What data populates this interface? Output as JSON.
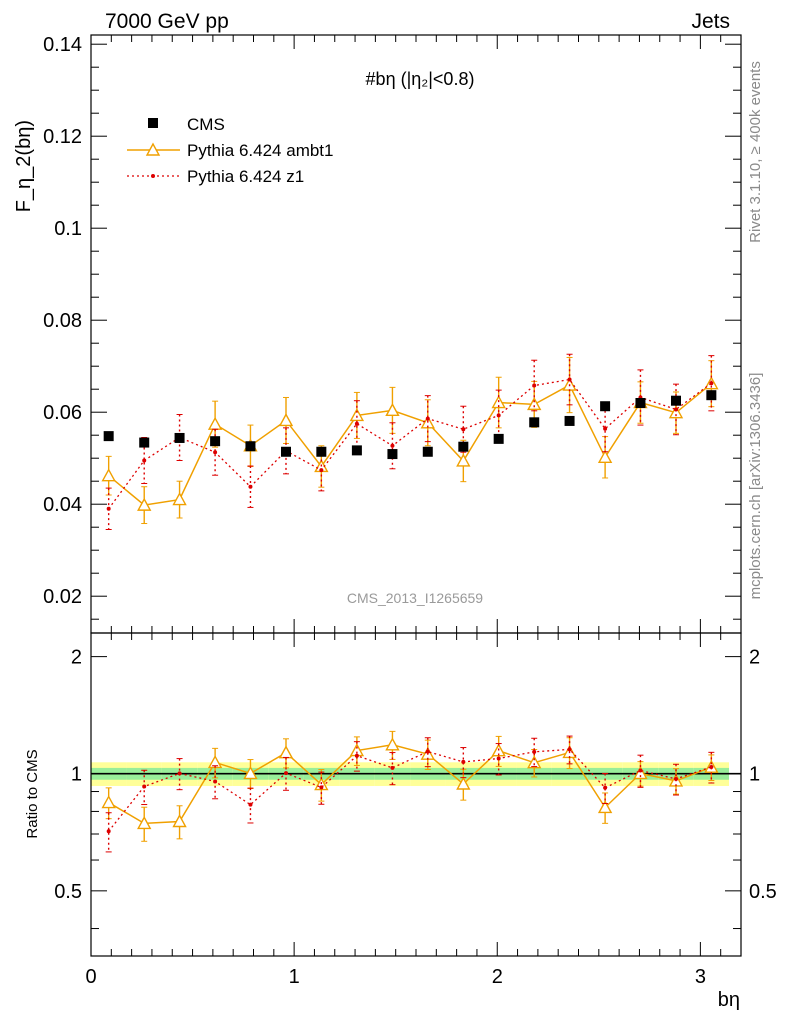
{
  "header": {
    "left": "7000 GeV pp",
    "right": "Jets",
    "plot_title": "#bη (|η₂|<0.8)",
    "watermark": "CMS_2013_I1265659",
    "side_rivet": "Rivet 3.1.10, ≥ 400k events",
    "side_mcplots": "mcplots.cern.ch [arXiv:1306.3436]"
  },
  "chart_data": {
    "type": "scatter",
    "xlabel": "bη",
    "ylabel": "F_η_2(bη)",
    "ratio_ylabel": "Ratio to CMS",
    "xlim": [
      0,
      3.2
    ],
    "ylim": [
      0.012,
      0.142
    ],
    "ratio_ylim": [
      0.34,
      2.3
    ],
    "x_ticks": [
      "0",
      "1",
      "2",
      "3"
    ],
    "y_ticks": [
      "0.02",
      "0.04",
      "0.06",
      "0.08",
      "0.1",
      "0.12",
      "0.14"
    ],
    "ratio_y_ticks": [
      "0.5",
      "1",
      "2"
    ],
    "x": [
      0.087,
      0.262,
      0.436,
      0.611,
      0.785,
      0.96,
      1.134,
      1.309,
      1.484,
      1.658,
      1.833,
      2.007,
      2.182,
      2.356,
      2.531,
      2.705,
      2.88,
      3.054
    ],
    "legend_position": "top-left",
    "grid": false,
    "series": [
      {
        "name": "CMS",
        "style": "square-marker",
        "color": "#000000",
        "values": [
          0.0548,
          0.0534,
          0.0544,
          0.0537,
          0.0526,
          0.0514,
          0.0514,
          0.0517,
          0.0509,
          0.0514,
          0.0525,
          0.0542,
          0.0578,
          0.0581,
          0.0613,
          0.062,
          0.0625,
          0.0637
        ],
        "band_stat_fraction": 0.035,
        "band_total_fraction": 0.07
      },
      {
        "name": "Pythia 6.424 ambt1",
        "style": "solid-line-open-triangle",
        "color": "#f0a000",
        "values": [
          0.0462,
          0.0398,
          0.041,
          0.0574,
          0.0527,
          0.0582,
          0.0482,
          0.0593,
          0.0604,
          0.0577,
          0.0494,
          0.0621,
          0.0617,
          0.0659,
          0.0502,
          0.0621,
          0.0599,
          0.0662
        ],
        "errors": [
          0.0042,
          0.004,
          0.004,
          0.005,
          0.0045,
          0.005,
          0.0045,
          0.005,
          0.005,
          0.005,
          0.0045,
          0.0055,
          0.005,
          0.006,
          0.0045,
          0.0045,
          0.0045,
          0.005
        ]
      },
      {
        "name": "Pythia 6.424 z1",
        "style": "dotted-line-dot",
        "color": "#dd0000",
        "values": [
          0.039,
          0.0495,
          0.0545,
          0.0513,
          0.0438,
          0.0516,
          0.0474,
          0.0575,
          0.0527,
          0.0586,
          0.0563,
          0.0593,
          0.0658,
          0.0671,
          0.0564,
          0.0632,
          0.0606,
          0.0663
        ],
        "errors": [
          0.0045,
          0.005,
          0.005,
          0.005,
          0.0045,
          0.005,
          0.0045,
          0.005,
          0.005,
          0.005,
          0.005,
          0.0055,
          0.0055,
          0.0055,
          0.005,
          0.006,
          0.0055,
          0.006
        ]
      }
    ]
  }
}
